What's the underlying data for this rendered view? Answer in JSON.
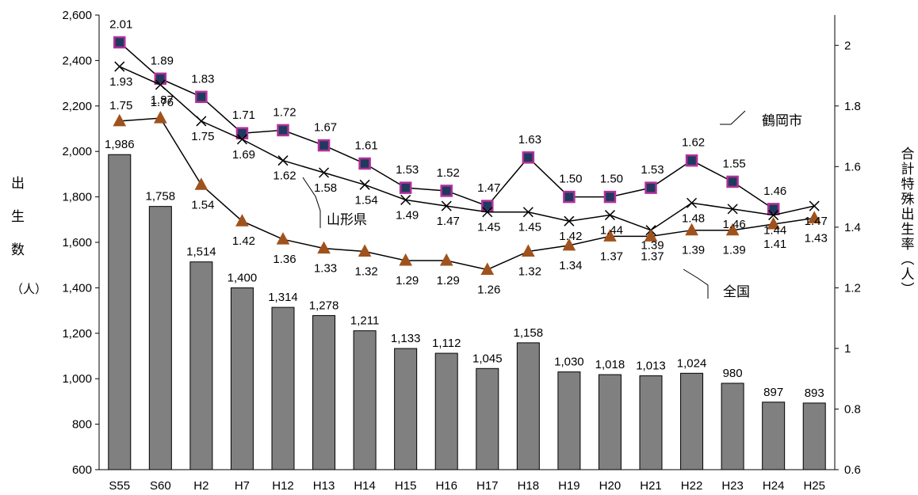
{
  "chart_data": {
    "type": "bar",
    "categories": [
      "S55",
      "S60",
      "H2",
      "H7",
      "H12",
      "H13",
      "H14",
      "H15",
      "H16",
      "H17",
      "H18",
      "H19",
      "H20",
      "H21",
      "H22",
      "H23",
      "H24",
      "H25"
    ],
    "bars": {
      "values": [
        1986,
        1758,
        1514,
        1400,
        1314,
        1278,
        1211,
        1133,
        1112,
        1045,
        1158,
        1030,
        1018,
        1013,
        1024,
        980,
        897,
        893
      ],
      "labels": [
        "1,986",
        "1,758",
        "1,514",
        "1,400",
        "1,314",
        "1,278",
        "1,211",
        "1,133",
        "1,112",
        "1,045",
        "1,158",
        "1,030",
        "1,018",
        "1,013",
        "1,024",
        "980",
        "897",
        "893"
      ],
      "color": "#808080"
    },
    "series": [
      {
        "name": "鶴岡市",
        "marker": "square",
        "color": "#1f3a5c",
        "edge": "#b0309a",
        "values": [
          2.01,
          1.89,
          1.83,
          1.71,
          1.72,
          1.67,
          1.61,
          1.53,
          1.52,
          1.47,
          1.63,
          1.5,
          1.5,
          1.53,
          1.62,
          1.55,
          1.46,
          null
        ],
        "labels": [
          "2.01",
          "1.89",
          "1.83",
          "1.71",
          "1.72",
          "1.67",
          "1.61",
          "1.53",
          "1.52",
          "1.47",
          "1.63",
          "1.50",
          "1.50",
          "1.53",
          "1.62",
          "1.55",
          "1.46",
          ""
        ]
      },
      {
        "name": "山形県",
        "marker": "x",
        "color": "#000000",
        "values": [
          1.93,
          1.87,
          1.75,
          1.69,
          1.62,
          1.58,
          1.54,
          1.49,
          1.47,
          1.45,
          1.45,
          1.42,
          1.44,
          1.39,
          1.48,
          1.46,
          1.44,
          1.47
        ],
        "labels": [
          "1.93",
          "1.87",
          "1.75",
          "1.69",
          "1.62",
          "1.58",
          "1.54",
          "1.49",
          "1.47",
          "1.45",
          "1.45",
          "1.42",
          "1.44",
          "1.39",
          "1.48",
          "1.46",
          "1.44",
          "1.47"
        ]
      },
      {
        "name": "全国",
        "marker": "triangle",
        "color": "#a0521d",
        "values": [
          1.75,
          1.76,
          1.54,
          1.42,
          1.36,
          1.33,
          1.32,
          1.29,
          1.29,
          1.26,
          1.32,
          1.34,
          1.37,
          1.37,
          1.39,
          1.39,
          1.41,
          1.43
        ],
        "labels": [
          "1.75",
          "1.76",
          "1.54",
          "1.42",
          "1.36",
          "1.33",
          "1.32",
          "1.29",
          "1.29",
          "1.26",
          "1.32",
          "1.34",
          "1.37",
          "1.37",
          "1.39",
          "1.39",
          "1.41",
          "1.43"
        ]
      }
    ],
    "y_left": {
      "label": "出生数（人）",
      "ylim": [
        600,
        2600
      ],
      "ticks": [
        "600",
        "800",
        "1,000",
        "1,200",
        "1,400",
        "1,600",
        "1,800",
        "2,000",
        "2,200",
        "2,400",
        "2,600"
      ]
    },
    "y_right": {
      "label": "合計特殊出生率（人）",
      "ylim": [
        0.6,
        2.1
      ],
      "ticks": [
        "0.6",
        "0.8",
        "1",
        "1.2",
        "1.4",
        "1.6",
        "1.8",
        "2"
      ]
    },
    "annotations": [
      "鶴岡市",
      "山形県",
      "全国"
    ],
    "grid": false
  }
}
